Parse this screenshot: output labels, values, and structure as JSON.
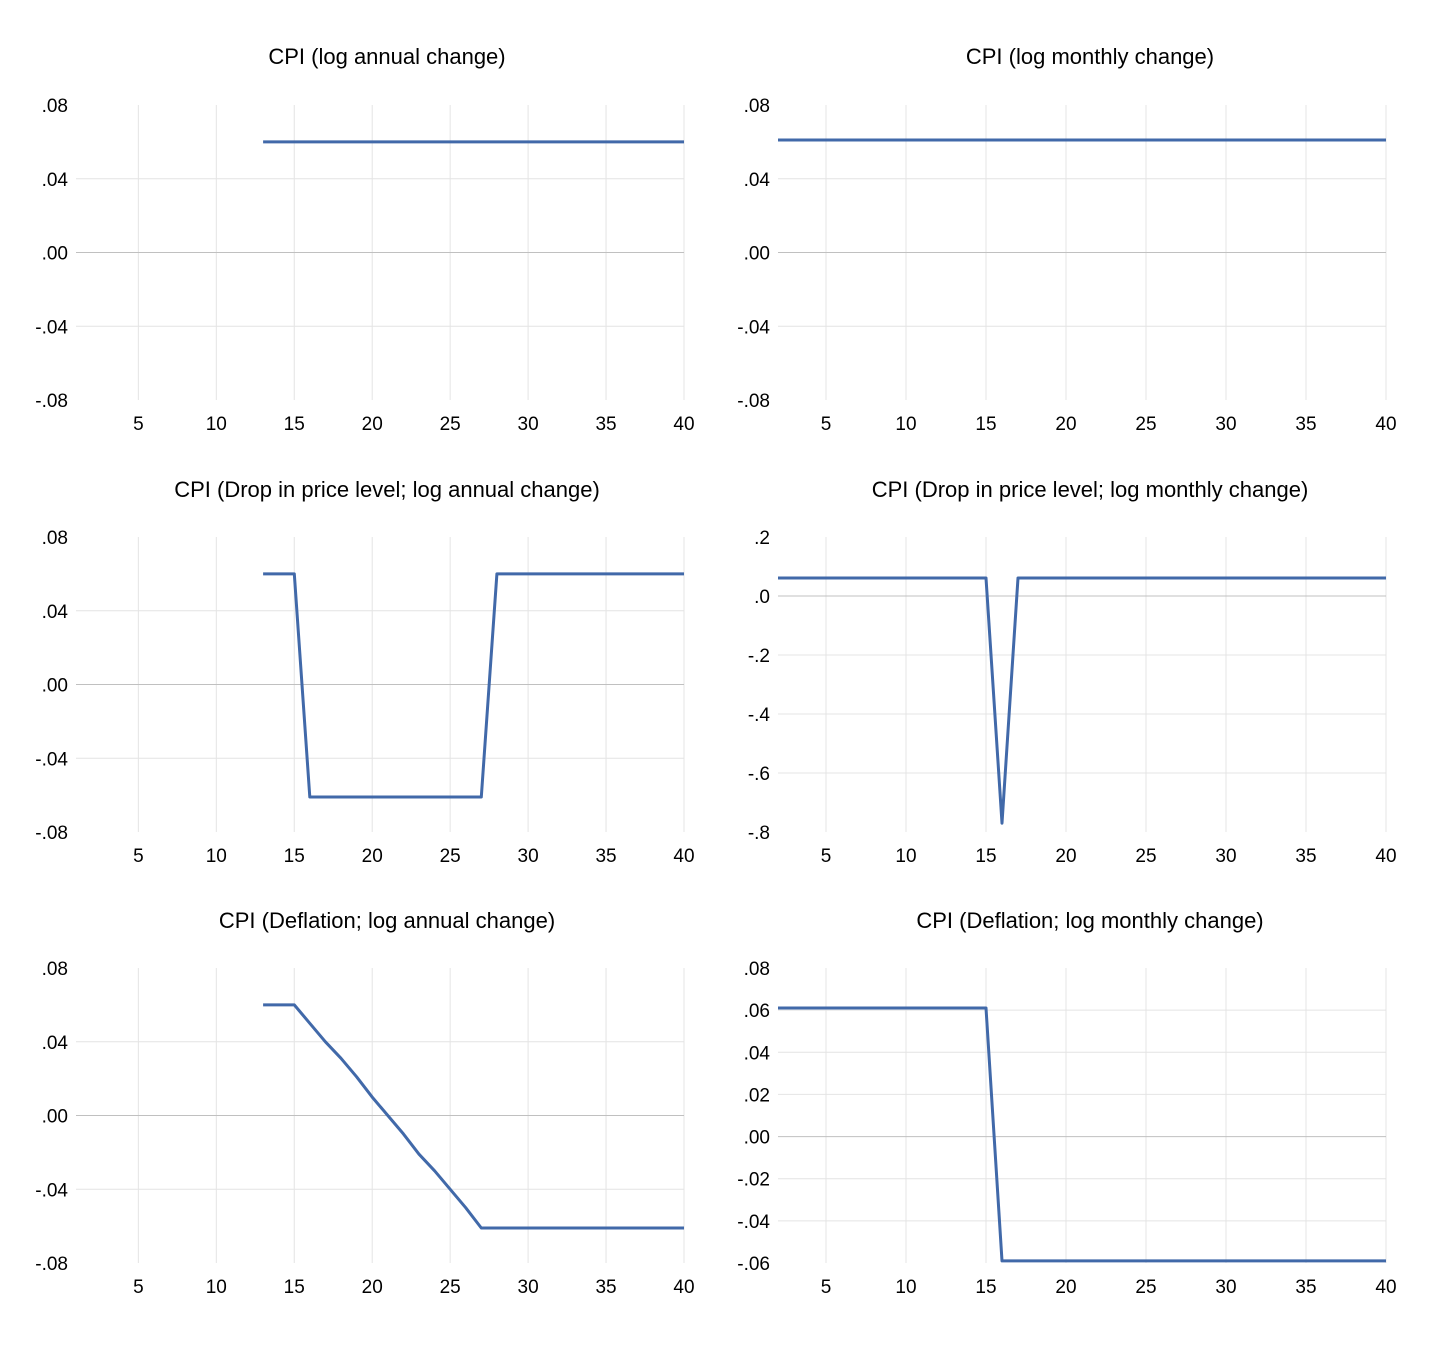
{
  "colors": {
    "line": "#4169A9",
    "grid": "#E4E4E4",
    "zero": "#C0C0C0",
    "text": "#000000"
  },
  "chart_data": [
    {
      "type": "line",
      "title": "CPI (log annual change)",
      "x_range": [
        1,
        40
      ],
      "x_ticks": [
        5,
        10,
        15,
        20,
        25,
        30,
        35,
        40
      ],
      "x_tick_labels": [
        "5",
        "10",
        "15",
        "20",
        "25",
        "30",
        "35",
        "40"
      ],
      "ylim": [
        -0.08,
        0.08
      ],
      "y_ticks": [
        -0.08,
        -0.04,
        0,
        0.04,
        0.08
      ],
      "y_tick_labels": [
        "-.08",
        "-.04",
        ".00",
        ".04",
        ".08"
      ],
      "series": [
        {
          "name": "CPI",
          "x": [
            13,
            40
          ],
          "y": [
            0.06,
            0.06
          ]
        }
      ]
    },
    {
      "type": "line",
      "title": "CPI (log monthly change)",
      "x_range": [
        2,
        40
      ],
      "x_ticks": [
        5,
        10,
        15,
        20,
        25,
        30,
        35,
        40
      ],
      "x_tick_labels": [
        "5",
        "10",
        "15",
        "20",
        "25",
        "30",
        "35",
        "40"
      ],
      "ylim": [
        -0.08,
        0.08
      ],
      "y_ticks": [
        -0.08,
        -0.04,
        0,
        0.04,
        0.08
      ],
      "y_tick_labels": [
        "-.08",
        "-.04",
        ".00",
        ".04",
        ".08"
      ],
      "series": [
        {
          "name": "CPI",
          "x": [
            2,
            40
          ],
          "y": [
            0.061,
            0.061
          ]
        }
      ]
    },
    {
      "type": "line",
      "title": "CPI (Drop in price level; log annual change)",
      "x_range": [
        1,
        40
      ],
      "x_ticks": [
        5,
        10,
        15,
        20,
        25,
        30,
        35,
        40
      ],
      "x_tick_labels": [
        "5",
        "10",
        "15",
        "20",
        "25",
        "30",
        "35",
        "40"
      ],
      "ylim": [
        -0.08,
        0.08
      ],
      "y_ticks": [
        -0.08,
        -0.04,
        0,
        0.04,
        0.08
      ],
      "y_tick_labels": [
        "-.08",
        "-.04",
        ".00",
        ".04",
        ".08"
      ],
      "series": [
        {
          "name": "CPI",
          "x": [
            13,
            15,
            16,
            27,
            28,
            40
          ],
          "y": [
            0.06,
            0.06,
            -0.061,
            -0.061,
            0.06,
            0.06
          ]
        }
      ]
    },
    {
      "type": "line",
      "title": "CPI (Drop in price level; log monthly change)",
      "x_range": [
        2,
        40
      ],
      "x_ticks": [
        5,
        10,
        15,
        20,
        25,
        30,
        35,
        40
      ],
      "x_tick_labels": [
        "5",
        "10",
        "15",
        "20",
        "25",
        "30",
        "35",
        "40"
      ],
      "ylim": [
        -0.8,
        0.2
      ],
      "y_ticks": [
        -0.8,
        -0.6,
        -0.4,
        -0.2,
        0,
        0.2
      ],
      "y_tick_labels": [
        "-.8",
        "-.6",
        "-.4",
        "-.2",
        ".0",
        ".2"
      ],
      "series": [
        {
          "name": "CPI",
          "x": [
            2,
            15,
            16,
            17,
            40
          ],
          "y": [
            0.061,
            0.061,
            -0.77,
            0.061,
            0.061
          ]
        }
      ]
    },
    {
      "type": "line",
      "title": "CPI (Deflation; log annual change)",
      "x_range": [
        1,
        40
      ],
      "x_ticks": [
        5,
        10,
        15,
        20,
        25,
        30,
        35,
        40
      ],
      "x_tick_labels": [
        "5",
        "10",
        "15",
        "20",
        "25",
        "30",
        "35",
        "40"
      ],
      "ylim": [
        -0.08,
        0.08
      ],
      "y_ticks": [
        -0.08,
        -0.04,
        0,
        0.04,
        0.08
      ],
      "y_tick_labels": [
        "-.08",
        "-.04",
        ".00",
        ".04",
        ".08"
      ],
      "series": [
        {
          "name": "CPI",
          "x": [
            13,
            15,
            16,
            17,
            18,
            19,
            20,
            21,
            22,
            23,
            24,
            25,
            26,
            27,
            40
          ],
          "y": [
            0.06,
            0.06,
            0.05,
            0.04,
            0.031,
            0.021,
            0.01,
            0,
            -0.01,
            -0.021,
            -0.03,
            -0.04,
            -0.05,
            -0.061,
            -0.061
          ]
        }
      ]
    },
    {
      "type": "line",
      "title": "CPI (Deflation; log monthly change)",
      "x_range": [
        2,
        40
      ],
      "x_ticks": [
        5,
        10,
        15,
        20,
        25,
        30,
        35,
        40
      ],
      "x_tick_labels": [
        "5",
        "10",
        "15",
        "20",
        "25",
        "30",
        "35",
        "40"
      ],
      "ylim": [
        -0.06,
        0.08
      ],
      "y_ticks": [
        -0.06,
        -0.04,
        -0.02,
        0,
        0.02,
        0.04,
        0.06,
        0.08
      ],
      "y_tick_labels": [
        "-.06",
        "-.04",
        "-.02",
        ".00",
        ".02",
        ".04",
        ".06",
        ".08"
      ],
      "series": [
        {
          "name": "CPI",
          "x": [
            2,
            15,
            16,
            40
          ],
          "y": [
            0.061,
            0.061,
            -0.059,
            -0.059
          ]
        }
      ]
    }
  ]
}
